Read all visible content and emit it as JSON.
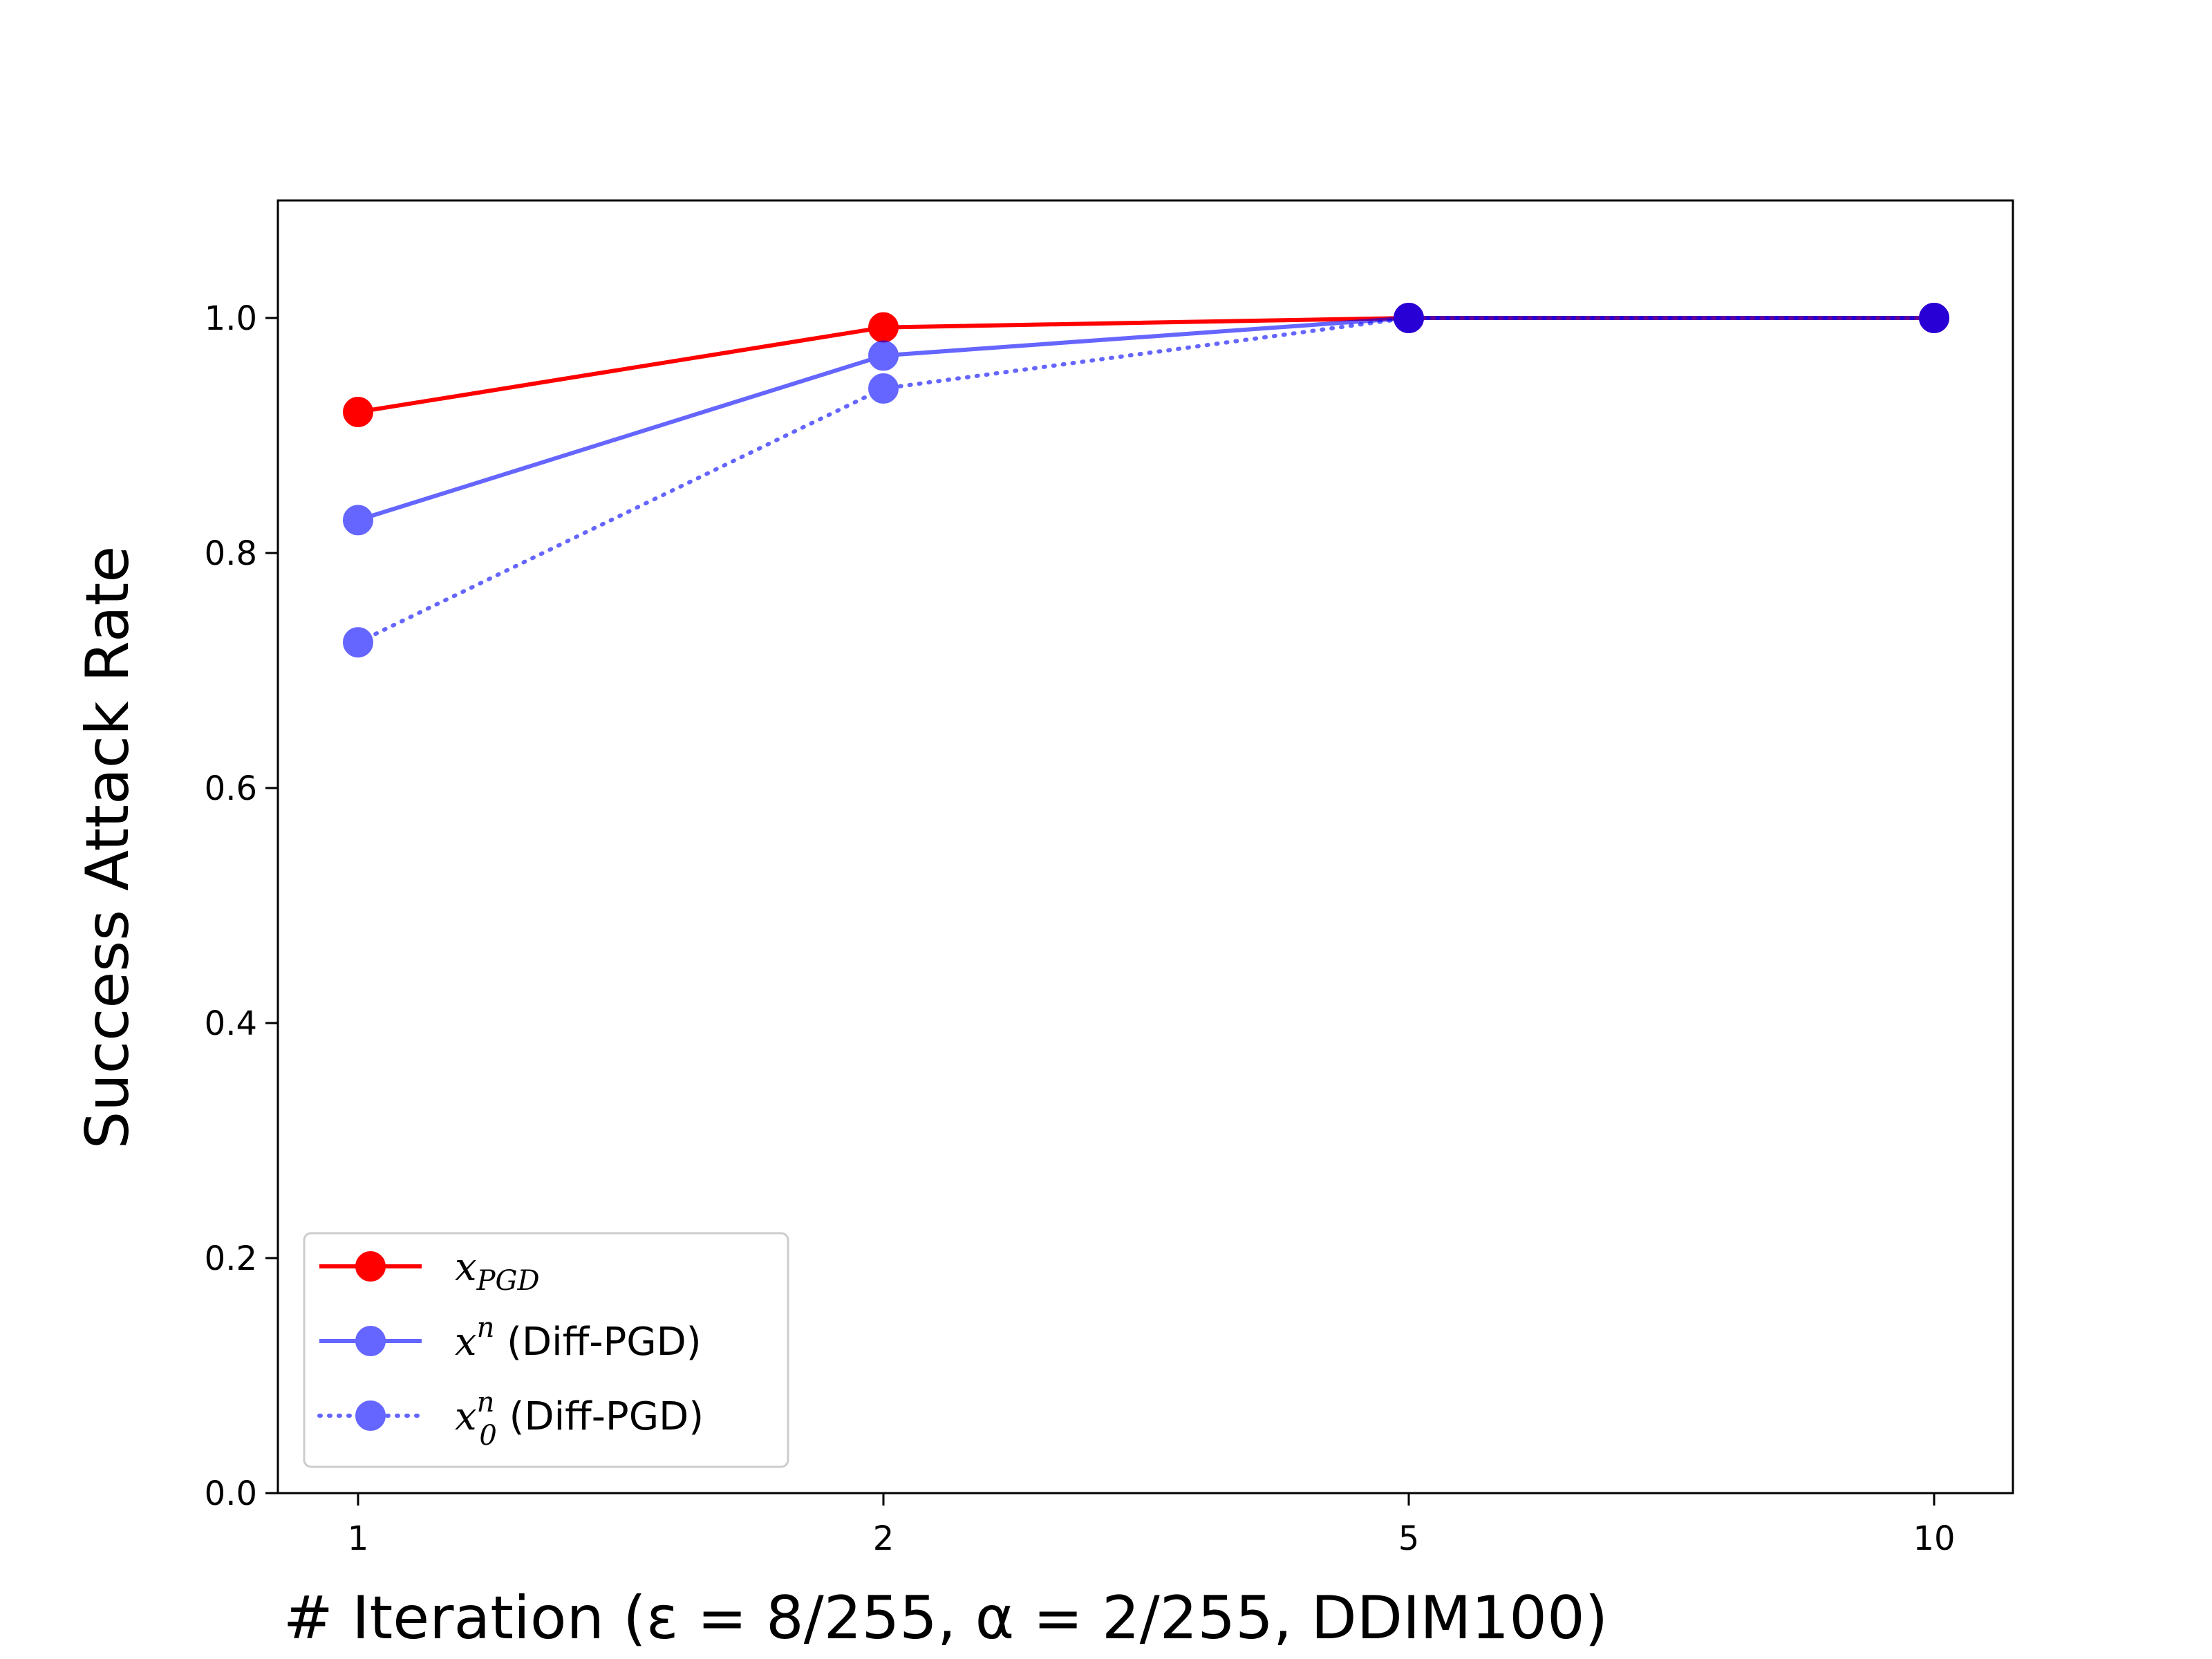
{
  "colors": {
    "red": "#ff0000",
    "blue": "#0000ff"
  },
  "chart_data": {
    "type": "line",
    "x_scale": "categorical (evenly spaced)",
    "categories": [
      "1",
      "2",
      "5",
      "10"
    ],
    "x": [
      1,
      2,
      5,
      10
    ],
    "xlabel": "# Iteration (ε = 8/255, α = 2/255, DDIM100)",
    "ylabel": "Success Attack Rate",
    "ylim": [
      0.0,
      1.1
    ],
    "yticks": [
      "0.0",
      "0.2",
      "0.4",
      "0.6",
      "0.8",
      "1.0"
    ],
    "grid": false,
    "legend_position": "lower-left",
    "series": [
      {
        "name": "x_PGD",
        "legend_main": "x",
        "legend_sub": "PGD",
        "legend_sup": "",
        "legend_suffix": "",
        "color": "#ff0000",
        "line_style": "solid",
        "opacity": 1.0,
        "values": [
          0.92,
          0.992,
          1.0,
          1.0
        ]
      },
      {
        "name": "x^n (Diff-PGD)",
        "legend_main": "x",
        "legend_sub": "",
        "legend_sup": "n",
        "legend_suffix": " (Diff-PGD)",
        "color": "#0000ff",
        "line_style": "solid",
        "opacity": 0.6,
        "values": [
          0.828,
          0.968,
          1.0,
          1.0
        ]
      },
      {
        "name": "x_0^n (Diff-PGD)",
        "legend_main": "x",
        "legend_sub": "0",
        "legend_sup": "n",
        "legend_suffix": " (Diff-PGD)",
        "color": "#0000ff",
        "line_style": "dotted",
        "opacity": 0.6,
        "values": [
          0.724,
          0.94,
          1.0,
          1.0
        ]
      }
    ]
  }
}
